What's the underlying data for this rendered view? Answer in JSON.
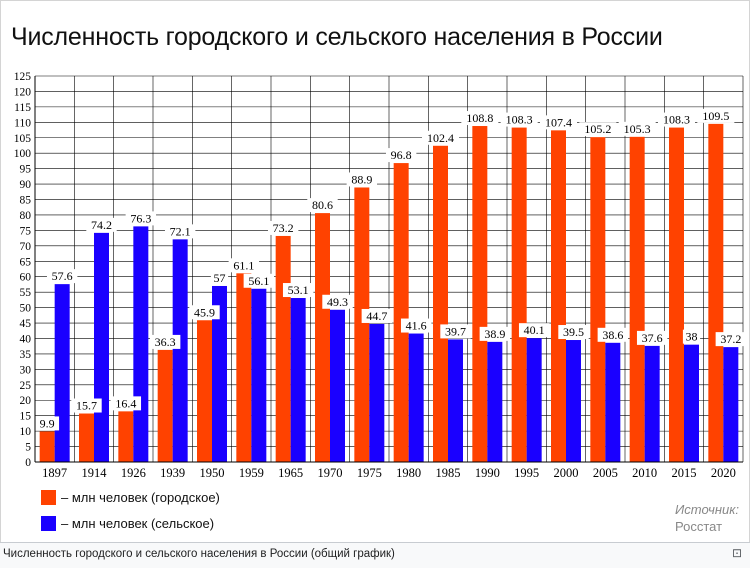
{
  "title": "Численность городского и сельского населения в России",
  "chart_data": {
    "type": "bar",
    "categories": [
      "1897",
      "1914",
      "1926",
      "1939",
      "1950",
      "1959",
      "1965",
      "1970",
      "1975",
      "1980",
      "1985",
      "1990",
      "1995",
      "2000",
      "2005",
      "2010",
      "2015",
      "2020"
    ],
    "series": [
      {
        "name": "– млн человек (городское)",
        "color": "#ff4200",
        "values": [
          9.9,
          15.7,
          16.4,
          36.3,
          45.9,
          61.1,
          73.2,
          80.6,
          88.9,
          96.8,
          102.4,
          108.8,
          108.3,
          107.4,
          105.2,
          105.3,
          108.3,
          109.5
        ]
      },
      {
        "name": "– млн человек (сельское)",
        "color": "#1a00ff",
        "values": [
          57.6,
          74.2,
          76.3,
          72.1,
          57,
          56.1,
          53.1,
          49.3,
          44.7,
          41.6,
          39.7,
          38.9,
          40.1,
          39.5,
          38.6,
          37.6,
          38,
          37.2
        ]
      }
    ],
    "ylim": [
      0,
      125
    ],
    "ytick_step": 5,
    "grid": true,
    "xlabel": "",
    "ylabel": "",
    "legend_position": "bottom-left"
  },
  "source": {
    "label": "Источник:",
    "value": "Росстат"
  },
  "caption": "Численность городского и сельского населения в России (общий график)",
  "enlarge_icon": "⊡"
}
